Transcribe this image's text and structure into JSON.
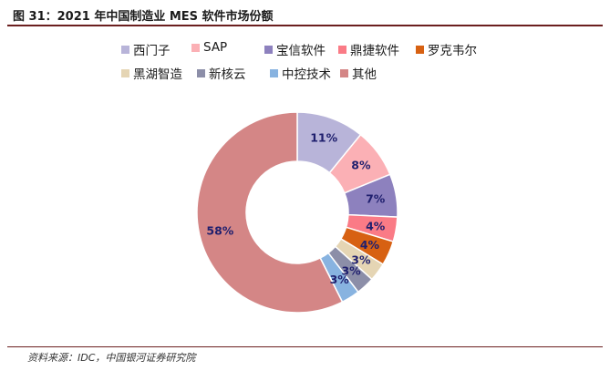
{
  "figure": {
    "title": "图 31：2021 年中国制造业 MES 软件市场份额",
    "source": "资料来源：IDC，中国银河证券研究院"
  },
  "chart_data": {
    "type": "pie",
    "donut": true,
    "title": "",
    "legend_position": "top",
    "series": [
      {
        "name": "西门子",
        "value": 11,
        "label": "11%",
        "color": "#b8b4d9"
      },
      {
        "name": "SAP",
        "value": 8,
        "label": "8%",
        "color": "#fbb0b5"
      },
      {
        "name": "宝信软件",
        "value": 7,
        "label": "7%",
        "color": "#8d81be"
      },
      {
        "name": "鼎捷软件",
        "value": 4,
        "label": "4%",
        "color": "#fa7b86"
      },
      {
        "name": "罗克韦尔",
        "value": 4,
        "label": "4%",
        "color": "#d76112"
      },
      {
        "name": "黑湖智造",
        "value": 3,
        "label": "3%",
        "color": "#e5d5b4"
      },
      {
        "name": "新核云",
        "value": 3,
        "label": "3%",
        "color": "#8c8ea8"
      },
      {
        "name": "中控技术",
        "value": 3,
        "label": "3%",
        "color": "#88b3e0"
      },
      {
        "name": "其他",
        "value": 58,
        "label": "58%",
        "color": "#d48686"
      }
    ]
  }
}
